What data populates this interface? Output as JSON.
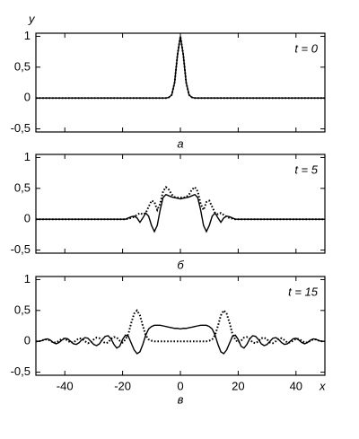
{
  "chart_data": [
    {
      "type": "line",
      "y_label": "у",
      "caption": "a",
      "annotation": "t = 0",
      "x": [
        -50,
        -40,
        -30,
        -20,
        -10,
        -5,
        -4,
        -3,
        -2,
        -1,
        0,
        1,
        2,
        3,
        4,
        5,
        10,
        20,
        30,
        40,
        50
      ],
      "series": [
        {
          "color": "#000000",
          "style": "solid",
          "values": [
            0,
            0,
            0,
            0,
            0,
            0,
            0.01,
            0.05,
            0.25,
            0.7,
            1,
            0.7,
            0.25,
            0.05,
            0.01,
            0,
            0,
            0,
            0,
            0,
            0
          ]
        },
        {
          "color": "#000000",
          "style": "dotted",
          "values": [
            0,
            0,
            0,
            0,
            0,
            0,
            0.01,
            0.05,
            0.25,
            0.7,
            1,
            0.7,
            0.25,
            0.05,
            0.01,
            0,
            0,
            0,
            0,
            0,
            0
          ]
        }
      ],
      "xlim": [
        -50,
        50
      ],
      "ylim": [
        -0.55,
        1.05
      ],
      "xticks": [
        -40,
        -20,
        0,
        20,
        40
      ],
      "show_xtick_labels": false,
      "yticks": [
        {
          "value": -0.5,
          "label": "-0,5"
        },
        0,
        {
          "value": 0.5,
          "label": "0,5"
        },
        1
      ]
    },
    {
      "type": "line",
      "caption": "б",
      "annotation": "t = 5",
      "x": [
        -50,
        -30,
        -20,
        -19,
        -18,
        -17,
        -16,
        -15,
        -14,
        -13,
        -12,
        -11,
        -10,
        -9,
        -8,
        -7,
        -6,
        -5,
        -4,
        -3,
        -2,
        -1,
        0,
        1,
        2,
        3,
        4,
        5,
        6,
        7,
        8,
        9,
        10,
        11,
        12,
        13,
        14,
        15,
        16,
        17,
        18,
        19,
        20,
        30,
        50
      ],
      "series": [
        {
          "color": "#000000",
          "style": "solid",
          "values": [
            0,
            0,
            0,
            0,
            0.02,
            0.04,
            0.05,
            0.02,
            -0.05,
            0.02,
            0.1,
            0.05,
            -0.1,
            -0.2,
            -0.1,
            0.15,
            0.35,
            0.4,
            0.38,
            0.36,
            0.35,
            0.34,
            0.33,
            0.34,
            0.35,
            0.36,
            0.38,
            0.4,
            0.35,
            0.15,
            -0.1,
            -0.2,
            -0.1,
            0.05,
            0.1,
            0.02,
            -0.05,
            0.02,
            0.05,
            0.04,
            0.02,
            0,
            0,
            0,
            0
          ]
        },
        {
          "color": "#000000",
          "style": "dotted",
          "values": [
            0,
            0,
            0,
            0,
            0.01,
            0.02,
            0.04,
            0.07,
            0.1,
            0.08,
            0.1,
            0.2,
            0.3,
            0.28,
            0.15,
            0.25,
            0.45,
            0.52,
            0.48,
            0.4,
            0.36,
            0.35,
            0.35,
            0.35,
            0.36,
            0.4,
            0.48,
            0.52,
            0.45,
            0.25,
            0.15,
            0.28,
            0.3,
            0.2,
            0.1,
            0.08,
            0.1,
            0.07,
            0.04,
            0.02,
            0.01,
            0,
            0,
            0,
            0
          ]
        }
      ],
      "xlim": [
        -50,
        50
      ],
      "ylim": [
        -0.55,
        1.05
      ],
      "xticks": [
        -40,
        -20,
        0,
        20,
        40
      ],
      "show_xtick_labels": false,
      "yticks": [
        {
          "value": -0.5,
          "label": "-0,5"
        },
        0,
        {
          "value": 0.5,
          "label": "0,5"
        },
        1
      ]
    },
    {
      "type": "line",
      "caption": "в",
      "annotation": "t = 15",
      "x_label": "x",
      "x": [
        -50,
        -49,
        -48,
        -47,
        -46,
        -45,
        -44,
        -43,
        -42,
        -41,
        -40,
        -39,
        -38,
        -37,
        -36,
        -35,
        -34,
        -33,
        -32,
        -31,
        -30,
        -29,
        -28,
        -27,
        -26,
        -25,
        -24,
        -23,
        -22,
        -21,
        -20,
        -19,
        -18,
        -17,
        -16,
        -15,
        -14,
        -13,
        -12,
        -11,
        -10,
        -9,
        -8,
        -7,
        -6,
        -5,
        -4,
        -3,
        -2,
        -1,
        0,
        1,
        2,
        3,
        4,
        5,
        6,
        7,
        8,
        9,
        10,
        11,
        12,
        13,
        14,
        15,
        16,
        17,
        18,
        19,
        20,
        21,
        22,
        23,
        24,
        25,
        26,
        27,
        28,
        29,
        30,
        31,
        32,
        33,
        34,
        35,
        36,
        37,
        38,
        39,
        40,
        41,
        42,
        43,
        44,
        45,
        46,
        47,
        48,
        49,
        50
      ],
      "series": [
        {
          "color": "#000000",
          "style": "solid",
          "values": [
            0,
            0,
            0.01,
            0.03,
            0.04,
            0.02,
            -0.02,
            -0.04,
            -0.02,
            0.02,
            0.05,
            0.04,
            0,
            -0.04,
            -0.05,
            -0.02,
            0.03,
            0.06,
            0.05,
            0,
            -0.05,
            -0.07,
            -0.04,
            0.03,
            0.08,
            0.09,
            0.04,
            -0.05,
            -0.11,
            -0.08,
            0.03,
            0.1,
            0.08,
            -0.03,
            -0.14,
            -0.2,
            -0.17,
            -0.05,
            0.1,
            0.2,
            0.24,
            0.26,
            0.26,
            0.26,
            0.25,
            0.24,
            0.23,
            0.22,
            0.21,
            0.21,
            0.2,
            0.21,
            0.21,
            0.22,
            0.23,
            0.24,
            0.25,
            0.26,
            0.26,
            0.26,
            0.24,
            0.2,
            0.1,
            -0.05,
            -0.17,
            -0.2,
            -0.14,
            -0.03,
            0.08,
            0.1,
            0.03,
            -0.08,
            -0.11,
            -0.05,
            0.04,
            0.09,
            0.08,
            0.03,
            -0.04,
            -0.07,
            -0.05,
            0,
            0.05,
            0.06,
            0.03,
            -0.02,
            -0.05,
            -0.04,
            0,
            0.04,
            0.05,
            0.02,
            -0.02,
            -0.04,
            -0.02,
            0.02,
            0.04,
            0.03,
            0.01,
            0,
            0
          ]
        },
        {
          "color": "#000000",
          "style": "dotted",
          "values": [
            0,
            0,
            0.01,
            0.03,
            0.03,
            0.01,
            -0.02,
            -0.02,
            0.01,
            0.04,
            0.04,
            0.01,
            -0.02,
            -0.02,
            0.02,
            0.05,
            0.04,
            0,
            -0.03,
            -0.02,
            0.03,
            0.06,
            0.05,
            0,
            -0.03,
            -0.02,
            0.04,
            0.07,
            0.06,
            0.01,
            -0.02,
            0.03,
            0.12,
            0.3,
            0.45,
            0.5,
            0.42,
            0.25,
            0.1,
            0.03,
            0.01,
            0,
            0,
            0,
            0,
            0,
            0,
            0,
            0,
            0,
            0,
            0,
            0,
            0,
            0,
            0,
            0,
            0,
            0,
            0,
            0.01,
            0.03,
            0.1,
            0.25,
            0.42,
            0.5,
            0.45,
            0.3,
            0.12,
            0.03,
            -0.02,
            0.01,
            0.06,
            0.07,
            0.04,
            -0.02,
            -0.03,
            0,
            0.05,
            0.06,
            0.03,
            -0.02,
            -0.03,
            0,
            0.04,
            0.05,
            0.02,
            -0.02,
            -0.02,
            0.01,
            0.04,
            0.04,
            0.01,
            -0.02,
            -0.02,
            0.01,
            0.03,
            0.03,
            0.01,
            0,
            0
          ]
        }
      ],
      "xlim": [
        -50,
        50
      ],
      "ylim": [
        -0.55,
        1.05
      ],
      "xticks": [
        -40,
        -20,
        0,
        20,
        40
      ],
      "show_xtick_labels": true,
      "yticks": [
        {
          "value": -0.5,
          "label": "-0,5"
        },
        0,
        {
          "value": 0.5,
          "label": "0,5"
        },
        1
      ]
    }
  ]
}
